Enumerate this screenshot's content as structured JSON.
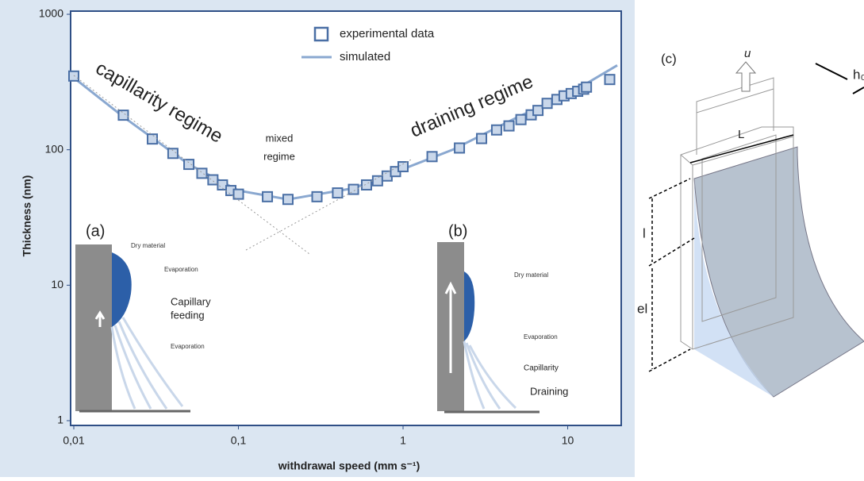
{
  "chart_data": {
    "type": "scatter-line",
    "log_x": true,
    "log_y": true,
    "xlabel": "withdrawal speed (mm s⁻¹)",
    "ylabel": "Thickness (nm)",
    "xlim": [
      0.01,
      20
    ],
    "ylim": [
      1,
      1000
    ],
    "xticks": [
      {
        "value": 0.01,
        "label": "0,01"
      },
      {
        "value": 0.1,
        "label": "0,1"
      },
      1,
      10
    ],
    "yticks": [
      1,
      10,
      100,
      1000
    ],
    "series": [
      {
        "name": "experimental data",
        "style": "square",
        "color": "#4a6fa5",
        "x": [
          0.01,
          0.02,
          0.03,
          0.04,
          0.05,
          0.06,
          0.07,
          0.08,
          0.09,
          0.1,
          0.15,
          0.2,
          0.3,
          0.4,
          0.5,
          0.6,
          0.7,
          0.8,
          0.9,
          1,
          1.5,
          2.2,
          3,
          3.7,
          4.4,
          5.2,
          6,
          6.6,
          7.5,
          8.6,
          9.5,
          10.5,
          11.5,
          12.5,
          13,
          18
        ],
        "values": [
          350,
          180,
          120,
          94,
          78,
          67,
          60,
          55,
          50,
          47,
          45,
          43,
          45,
          48,
          51,
          55,
          59,
          64,
          69,
          75,
          89,
          103,
          121,
          140,
          150,
          167,
          181,
          195,
          220,
          235,
          250,
          260,
          270,
          280,
          290,
          330
        ]
      },
      {
        "name": "simulated",
        "style": "line",
        "color": "#8aa8d0",
        "x": [
          0.01,
          0.02,
          0.05,
          0.1,
          0.2,
          0.5,
          1,
          2,
          5,
          10,
          20
        ],
        "values": [
          340,
          175,
          78,
          50,
          43,
          52,
          72,
          100,
          175,
          255,
          420
        ]
      }
    ],
    "annotations": [
      "capillarity regime",
      "mixed",
      "regime",
      "draining regime"
    ]
  },
  "insets": {
    "a": {
      "label": "(a)",
      "texts": [
        "Dry material",
        "Evaporation",
        "Capillary",
        "feeding",
        "Evaporation"
      ]
    },
    "b": {
      "label": "(b)",
      "texts": [
        "Dry material",
        "Evaporation",
        "Capillarity",
        "Draining"
      ]
    }
  },
  "diagram": {
    "label": "(c)",
    "u": "u",
    "h0": "h₀",
    "L": "L",
    "l": "l",
    "el": "el"
  }
}
